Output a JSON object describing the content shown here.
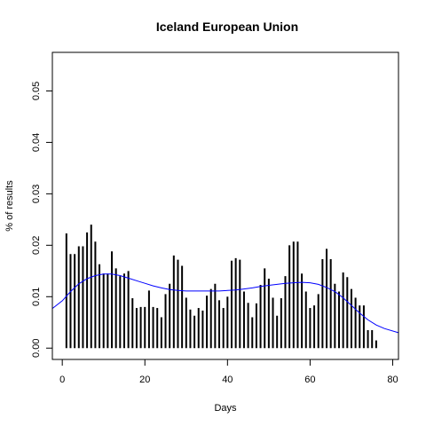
{
  "chart_data": {
    "type": "bar",
    "title": "Iceland European Union",
    "xlabel": "Days",
    "ylabel": "% of results",
    "xlim": [
      -2.4,
      81.4
    ],
    "ylim": [
      -0.0022,
      0.0575
    ],
    "x_ticks": [
      0,
      20,
      40,
      60,
      80
    ],
    "y_ticks": [
      0.0,
      0.01,
      0.02,
      0.03,
      0.04,
      0.05
    ],
    "y_tick_labels": [
      "0.00",
      "0.01",
      "0.02",
      "0.03",
      "0.04",
      "0.05"
    ],
    "bar_color": "#000000",
    "smooth_color": "#0000ff",
    "bars": {
      "x": [
        1,
        2,
        3,
        4,
        5,
        6,
        7,
        8,
        9,
        10,
        11,
        12,
        13,
        14,
        15,
        16,
        17,
        18,
        19,
        20,
        21,
        22,
        23,
        24,
        25,
        26,
        27,
        28,
        29,
        30,
        31,
        32,
        33,
        34,
        35,
        36,
        37,
        38,
        39,
        40,
        41,
        42,
        43,
        44,
        45,
        46,
        47,
        48,
        49,
        50,
        51,
        52,
        53,
        54,
        55,
        56,
        57,
        58,
        59,
        60,
        61,
        62,
        63,
        64,
        65,
        66,
        67,
        68,
        69,
        70,
        71,
        72,
        73,
        74,
        75,
        76,
        77
      ],
      "values": [
        0.0223,
        0.0183,
        0.0183,
        0.0198,
        0.0198,
        0.0225,
        0.024,
        0.0207,
        0.0163,
        0.0145,
        0.0145,
        0.0188,
        0.0155,
        0.014,
        0.0145,
        0.015,
        0.0097,
        0.0078,
        0.008,
        0.008,
        0.0112,
        0.008,
        0.0078,
        0.006,
        0.0105,
        0.0125,
        0.018,
        0.0172,
        0.016,
        0.0098,
        0.0075,
        0.0063,
        0.0078,
        0.0073,
        0.0102,
        0.0115,
        0.0125,
        0.0093,
        0.0078,
        0.01,
        0.017,
        0.0175,
        0.0172,
        0.011,
        0.0088,
        0.006,
        0.0087,
        0.0123,
        0.0155,
        0.0135,
        0.0098,
        0.0063,
        0.0097,
        0.014,
        0.02,
        0.0207,
        0.0207,
        0.0145,
        0.011,
        0.0078,
        0.0083,
        0.0105,
        0.0173,
        0.0193,
        0.0173,
        0.0125,
        0.011,
        0.0147,
        0.0138,
        0.0115,
        0.0098,
        0.0083,
        0.0083,
        0.0035,
        0.0035,
        0.0015,
        0.0
      ]
    },
    "smooth": {
      "x": [
        -2.4,
        0,
        2,
        4,
        6,
        8,
        10,
        12,
        14,
        16,
        18,
        20,
        22,
        24,
        26,
        28,
        30,
        32,
        34,
        36,
        38,
        40,
        42,
        44,
        46,
        48,
        50,
        52,
        54,
        56,
        58,
        60,
        62,
        64,
        66,
        68,
        70,
        72,
        74,
        76,
        78,
        81.4
      ],
      "values": [
        0.0077,
        0.0092,
        0.011,
        0.0125,
        0.0135,
        0.0141,
        0.0144,
        0.0144,
        0.0141,
        0.0136,
        0.0131,
        0.0126,
        0.0121,
        0.0117,
        0.0114,
        0.0112,
        0.0111,
        0.0111,
        0.0111,
        0.0111,
        0.0111,
        0.0112,
        0.0113,
        0.0115,
        0.0117,
        0.012,
        0.0122,
        0.0124,
        0.0126,
        0.0127,
        0.0128,
        0.0127,
        0.0124,
        0.0118,
        0.011,
        0.0098,
        0.0083,
        0.0068,
        0.0055,
        0.0045,
        0.0038,
        0.003
      ]
    }
  }
}
